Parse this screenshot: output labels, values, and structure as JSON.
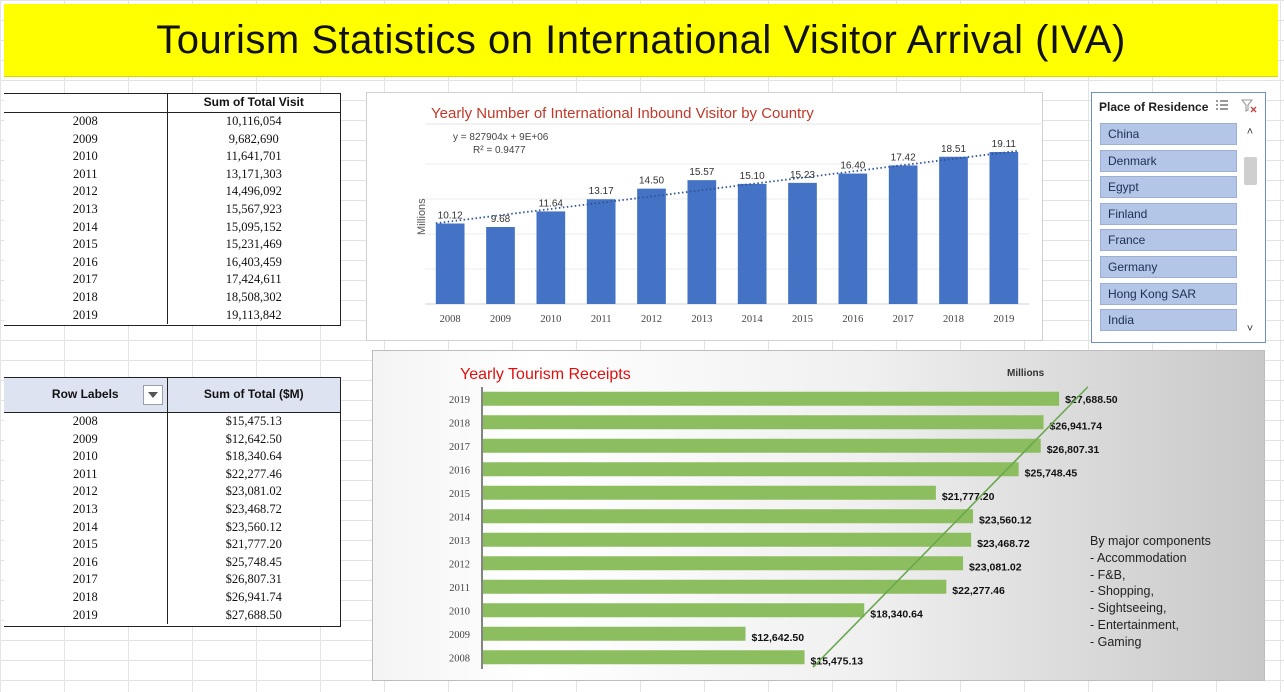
{
  "banner": {
    "title": "Tourism Statistics on International Visitor Arrival (IVA)"
  },
  "visits_table": {
    "header": "Sum of Total Visit",
    "rows": [
      {
        "year": "2008",
        "value": "10,116,054"
      },
      {
        "year": "2009",
        "value": "9,682,690"
      },
      {
        "year": "2010",
        "value": "11,641,701"
      },
      {
        "year": "2011",
        "value": "13,171,303"
      },
      {
        "year": "2012",
        "value": "14,496,092"
      },
      {
        "year": "2013",
        "value": "15,567,923"
      },
      {
        "year": "2014",
        "value": "15,095,152"
      },
      {
        "year": "2015",
        "value": "15,231,469"
      },
      {
        "year": "2016",
        "value": "16,403,459"
      },
      {
        "year": "2017",
        "value": "17,424,611"
      },
      {
        "year": "2018",
        "value": "18,508,302"
      },
      {
        "year": "2019",
        "value": "19,113,842"
      }
    ]
  },
  "receipts_table": {
    "row_labels": "Row Labels",
    "header": "Sum of Total  ($M)",
    "rows": [
      {
        "year": "2008",
        "value": "$15,475.13"
      },
      {
        "year": "2009",
        "value": "$12,642.50"
      },
      {
        "year": "2010",
        "value": "$18,340.64"
      },
      {
        "year": "2011",
        "value": "$22,277.46"
      },
      {
        "year": "2012",
        "value": "$23,081.02"
      },
      {
        "year": "2013",
        "value": "$23,468.72"
      },
      {
        "year": "2014",
        "value": "$23,560.12"
      },
      {
        "year": "2015",
        "value": "$21,777.20"
      },
      {
        "year": "2016",
        "value": "$25,748.45"
      },
      {
        "year": "2017",
        "value": "$26,807.31"
      },
      {
        "year": "2018",
        "value": "$26,941.74"
      },
      {
        "year": "2019",
        "value": "$27,688.50"
      }
    ]
  },
  "slicer": {
    "title": "Place of Residence",
    "items": [
      "China",
      "Denmark",
      "Egypt",
      "Finland",
      "France",
      "Germany",
      "Hong Kong SAR",
      "India"
    ]
  },
  "note": {
    "lines": [
      "By major components",
      "- Accommodation",
      "- F&B,",
      "- Shopping,",
      "- Sightseeing,",
      "- Entertainment,",
      "- Gaming"
    ]
  },
  "colors": {
    "banner": "#ffff00",
    "bar_blue": "#4472c4",
    "bar_green": "#8cbd5e",
    "trend_green": "#6aa84f",
    "title_red": "#c0392b",
    "slicer_item": "#b3c6e7"
  },
  "chart_data": [
    {
      "type": "bar",
      "title": "Yearly Number of International Inbound Visitor by Country",
      "ylabel": "Millions",
      "categories": [
        "2008",
        "2009",
        "2010",
        "2011",
        "2012",
        "2013",
        "2014",
        "2015",
        "2016",
        "2017",
        "2018",
        "2019"
      ],
      "values": [
        10.12,
        9.68,
        11.64,
        13.17,
        14.5,
        15.57,
        15.1,
        15.23,
        16.4,
        17.42,
        18.51,
        19.11
      ],
      "labels": [
        "10.12",
        "9.68",
        "11.64",
        "13.17",
        "14.50",
        "15.57",
        "15.10",
        "15.23",
        "16.40",
        "17.42",
        "18.51",
        "19.11"
      ],
      "trendline": {
        "style": "dotted",
        "equation": "y = 827904x + 9E+06",
        "r2": "R² = 0.9477"
      },
      "ylim": [
        0,
        22
      ],
      "grid": true
    },
    {
      "type": "bar",
      "orientation": "horizontal",
      "title": "Yearly Tourism Receipts",
      "unit_label": "Millions",
      "categories": [
        "2019",
        "2018",
        "2017",
        "2016",
        "2015",
        "2014",
        "2013",
        "2012",
        "2011",
        "2010",
        "2009",
        "2008"
      ],
      "values": [
        27688.5,
        26941.74,
        26807.31,
        25748.45,
        21777.2,
        23560.12,
        23468.72,
        23081.02,
        22277.46,
        18340.64,
        12642.5,
        15475.13
      ],
      "labels": [
        "$27,688.50",
        "$26,941.74",
        "$26,807.31",
        "$25,748.45",
        "$21,777.20",
        "$23,560.12",
        "$23,468.72",
        "$23,081.02",
        "$22,277.46",
        "$18,340.64",
        "$12,642.50",
        "$15,475.13"
      ],
      "trendline": {
        "style": "solid"
      },
      "xlim": [
        0,
        28500
      ]
    }
  ]
}
